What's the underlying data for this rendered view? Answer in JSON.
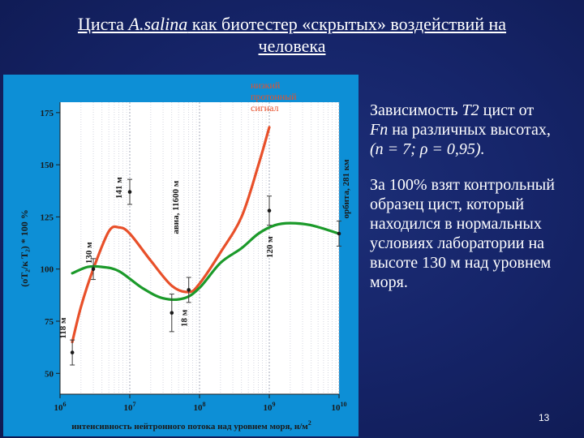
{
  "slide": {
    "title_line1_pre": "Циста ",
    "title_line1_species": "A.salina",
    "title_line1_post": " как биотестер «скрытых» воздействий на",
    "title_line2": "человека",
    "page_number": "13"
  },
  "right_panel": {
    "p1_a": "Зависимость ",
    "p1_t2": "T2",
    "p1_b": " цист от",
    "p1_fn": "Fn",
    "p1_c": " на различных высотах,",
    "p1_stats": "(n = 7; ρ = 0,95).",
    "p2": "За 100% взят контрольный образец цист, который находился в нормальных условиях лаборатории на высоте 130 м над уровнем моря."
  },
  "chart_data": {
    "type": "line",
    "x_scale": "log",
    "xlim": [
      1000000,
      10000000000
    ],
    "ylim": [
      40,
      180
    ],
    "yticks": [
      50,
      75,
      100,
      125,
      150,
      175
    ],
    "xticks": [
      {
        "base": "10",
        "exp": "6",
        "value": 1000000
      },
      {
        "base": "10",
        "exp": "7",
        "value": 10000000
      },
      {
        "base": "10",
        "exp": "8",
        "value": 100000000
      },
      {
        "base": "10",
        "exp": "9",
        "value": 1000000000
      },
      {
        "base": "10",
        "exp": "10",
        "value": 10000000000
      }
    ],
    "xlabel": "интенсивность нейтронного потока над уровнем моря, н/м",
    "xlabel_sup": "2",
    "ylabel": "(оТ₂/к Т₂) * 100 %",
    "grid": true,
    "colors": {
      "orange": "#e8502a",
      "green": "#1b9a2a",
      "points": "#1a1a1a",
      "errbars": "#3a3a3a"
    },
    "annotation": "низкий протонный сигнал",
    "measurements": [
      {
        "x": 1500000,
        "y": 60,
        "err": 6,
        "label": "118 м"
      },
      {
        "x": 3000000,
        "y": 100,
        "err": 5,
        "label": "130 м"
      },
      {
        "x": 10000000,
        "y": 137,
        "err": 6,
        "label": "141 м"
      },
      {
        "x": 40000000,
        "y": 79,
        "err": 9,
        "label": "авиа, 11600 м"
      },
      {
        "x": 70000000,
        "y": 90,
        "err": 6,
        "label": "18 м"
      },
      {
        "x": 1000000000,
        "y": 128,
        "err": 7,
        "label": "120 м"
      },
      {
        "x": 10000000000,
        "y": 117,
        "err": 6,
        "label": "орбита, 281 км"
      }
    ],
    "series": [
      {
        "color": "#e8502a",
        "points": [
          [
            1500000,
            65
          ],
          [
            2000000,
            82
          ],
          [
            3000000,
            100
          ],
          [
            5000000,
            118
          ],
          [
            7000000,
            120
          ],
          [
            10000000,
            117
          ],
          [
            20000000,
            104
          ],
          [
            40000000,
            92
          ],
          [
            70000000,
            89
          ],
          [
            100000000,
            93
          ],
          [
            200000000,
            108
          ],
          [
            400000000,
            125
          ],
          [
            700000000,
            150
          ],
          [
            1000000000,
            168
          ]
        ]
      },
      {
        "color": "#1b9a2a",
        "points": [
          [
            1500000,
            98
          ],
          [
            2500000,
            101
          ],
          [
            4000000,
            101
          ],
          [
            7000000,
            99
          ],
          [
            15000000,
            91
          ],
          [
            30000000,
            86
          ],
          [
            60000000,
            86
          ],
          [
            100000000,
            91
          ],
          [
            200000000,
            103
          ],
          [
            400000000,
            110
          ],
          [
            700000000,
            117
          ],
          [
            1200000000,
            121
          ],
          [
            2000000000,
            122
          ],
          [
            4000000000,
            121
          ],
          [
            10000000000,
            117
          ]
        ]
      }
    ]
  }
}
